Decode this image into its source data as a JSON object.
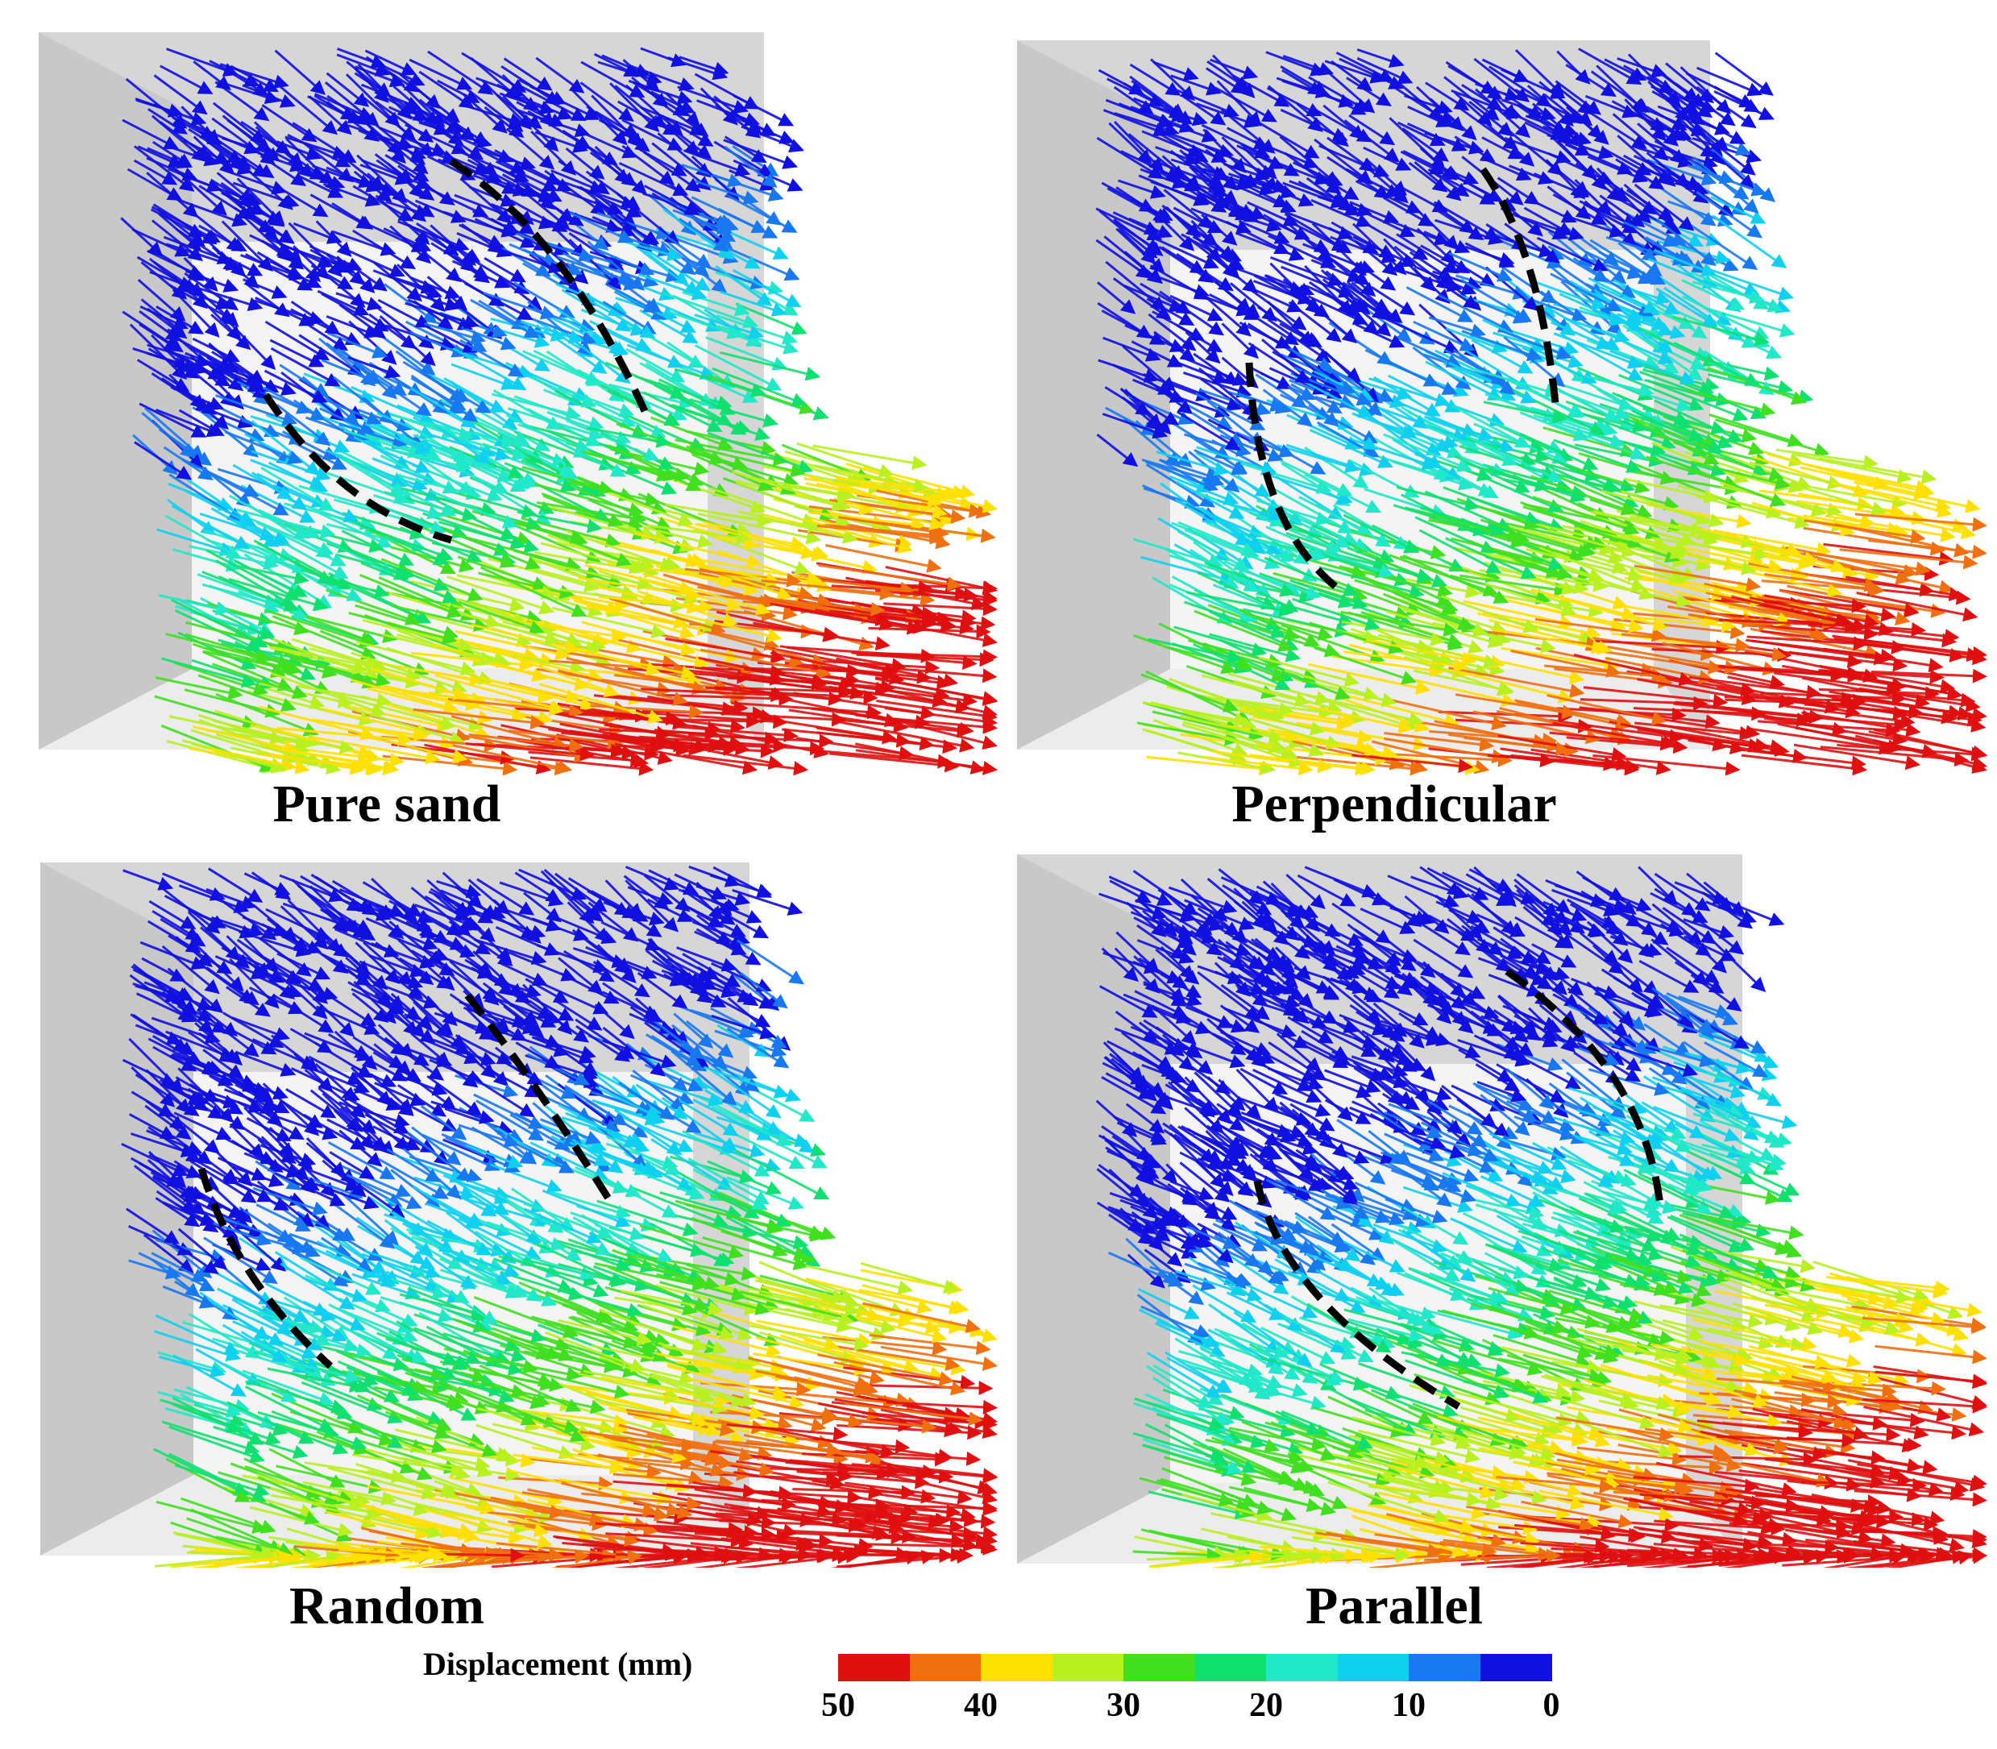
{
  "panels": [
    {
      "id": "pure-sand",
      "caption": "Pure sand"
    },
    {
      "id": "perpendicular",
      "caption": "Perpendicular"
    },
    {
      "id": "random",
      "caption": "Random"
    },
    {
      "id": "parallel",
      "caption": "Parallel"
    }
  ],
  "legend": {
    "title": "Displacement (mm)",
    "ticks": [
      "50",
      "40",
      "30",
      "20",
      "10",
      "0"
    ],
    "colors": [
      "#e01010",
      "#f07010",
      "#ffe000",
      "#b8f020",
      "#40e020",
      "#10e070",
      "#20e8c8",
      "#10d0f0",
      "#1878f0",
      "#1010e0"
    ]
  }
}
